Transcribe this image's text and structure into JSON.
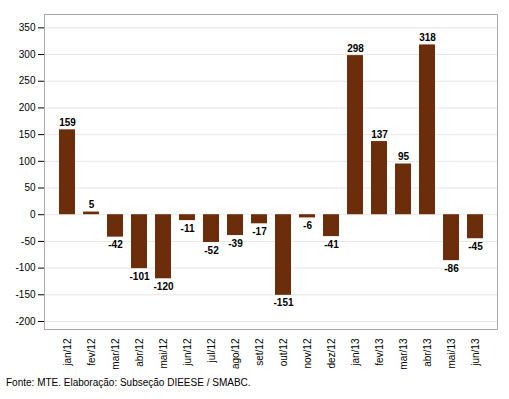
{
  "chart_data": {
    "type": "bar",
    "categories": [
      "jan/12",
      "fev/12",
      "mar/12",
      "abr/12",
      "mai/12",
      "jun/12",
      "jul/12",
      "ago/12",
      "set/12",
      "out/12",
      "nov/12",
      "dez/12",
      "jan/13",
      "fev/13",
      "mar/13",
      "abr/13",
      "mai/13",
      "jun/13"
    ],
    "values": [
      159,
      5,
      -42,
      -101,
      -120,
      -11,
      -52,
      -39,
      -17,
      -151,
      -6,
      -41,
      298,
      137,
      95,
      318,
      -86,
      -45
    ],
    "color": "#6B2D0A",
    "ylim": [
      -215,
      375
    ],
    "yticks": [
      -200,
      -150,
      -100,
      -50,
      0,
      50,
      100,
      150,
      200,
      250,
      300,
      350
    ],
    "grid": true,
    "data_labels": true,
    "annotations": [
      "Fonte: MTE. Elaboração: Subseção DIEESE / SMABC."
    ]
  }
}
